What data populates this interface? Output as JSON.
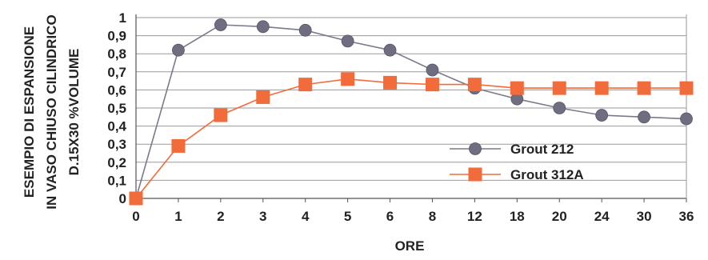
{
  "chart_data": {
    "type": "line",
    "title": "",
    "xlabel": "ORE",
    "ylabel_lines": [
      "ESEMPIO DI ESPANSIONE",
      "IN VASO CHIUSO CILINDRICO",
      "D.15X30 %VOLUME"
    ],
    "categories": [
      "0",
      "1",
      "2",
      "3",
      "4",
      "5",
      "6",
      "8",
      "12",
      "18",
      "20",
      "24",
      "30",
      "36"
    ],
    "y_ticks": [
      "0",
      "0,1",
      "0,2",
      "0,3",
      "0,4",
      "0,5",
      "0,6",
      "0,7",
      "0,8",
      "0,9",
      "1"
    ],
    "ylim": [
      0,
      1
    ],
    "grid": true,
    "legend_position": "lower-right",
    "series": [
      {
        "name": "Grout 212",
        "marker": "circle",
        "line_color": "#7a7a8c",
        "marker_color": "#6e6e80",
        "values": [
          0,
          0.82,
          0.96,
          0.95,
          0.93,
          0.87,
          0.82,
          0.71,
          0.61,
          0.55,
          0.5,
          0.46,
          0.45,
          0.44
        ]
      },
      {
        "name": "Grout 312A",
        "marker": "square",
        "line_color": "#f26b3a",
        "marker_color": "#f26b3a",
        "values": [
          0,
          0.29,
          0.46,
          0.56,
          0.63,
          0.66,
          0.64,
          0.63,
          0.63,
          0.61,
          0.61,
          0.61,
          0.61,
          0.61
        ]
      }
    ]
  }
}
